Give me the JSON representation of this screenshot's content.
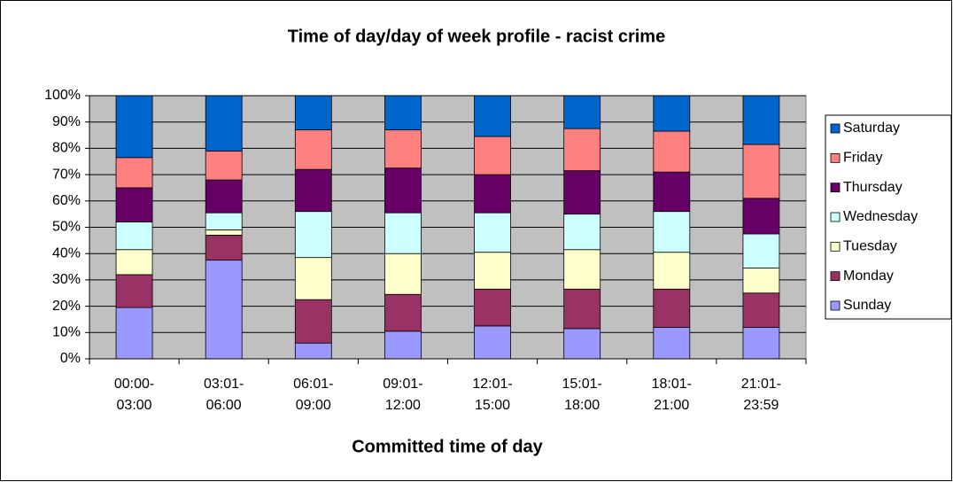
{
  "chart_data": {
    "type": "stacked_bar_100",
    "title": "Time of day/day of week profile - racist crime",
    "x_label": "Committed time of day",
    "categories": [
      "00:00-03:00",
      "03:01-06:00",
      "06:01-09:00",
      "09:01-12:00",
      "12:01-15:00",
      "15:01-18:00",
      "18:01-21:00",
      "21:01-23:59"
    ],
    "series": [
      {
        "name": "Sunday",
        "color": "#9999ff",
        "values": [
          19.5,
          37.5,
          6,
          10.5,
          12.5,
          11.5,
          12,
          12
        ]
      },
      {
        "name": "Monday",
        "color": "#993366",
        "values": [
          12.5,
          9.5,
          16.5,
          14,
          14,
          15,
          14.5,
          13
        ]
      },
      {
        "name": "Tuesday",
        "color": "#ffffcc",
        "values": [
          9.5,
          2,
          16,
          15.5,
          14,
          15,
          14,
          9.5
        ]
      },
      {
        "name": "Wednesday",
        "color": "#ccffff",
        "values": [
          10.5,
          6.5,
          17.5,
          15.5,
          15,
          13.5,
          15.5,
          13
        ]
      },
      {
        "name": "Thursday",
        "color": "#660066",
        "values": [
          13,
          12.5,
          16,
          17,
          14.5,
          16.5,
          15,
          13.5
        ]
      },
      {
        "name": "Friday",
        "color": "#ff8080",
        "values": [
          11.5,
          11,
          15,
          14.5,
          14.5,
          16,
          15.5,
          20.5
        ]
      },
      {
        "name": "Saturday",
        "color": "#0066cc",
        "values": [
          23.5,
          21,
          13,
          13,
          15.5,
          12.5,
          13.5,
          18.5
        ]
      }
    ],
    "ylim": [
      0,
      100
    ],
    "yticks": [
      {
        "value": 0,
        "label": "0%"
      },
      {
        "value": 10,
        "label": "10%"
      },
      {
        "value": 20,
        "label": "20%"
      },
      {
        "value": 30,
        "label": "30%"
      },
      {
        "value": 40,
        "label": "40%"
      },
      {
        "value": 50,
        "label": "50%"
      },
      {
        "value": 60,
        "label": "60%"
      },
      {
        "value": 70,
        "label": "70%"
      },
      {
        "value": 80,
        "label": "80%"
      },
      {
        "value": 90,
        "label": "90%"
      },
      {
        "value": 100,
        "label": "100%"
      }
    ],
    "grid": true,
    "plot_background": "#c0c0c0",
    "legend": "right"
  }
}
